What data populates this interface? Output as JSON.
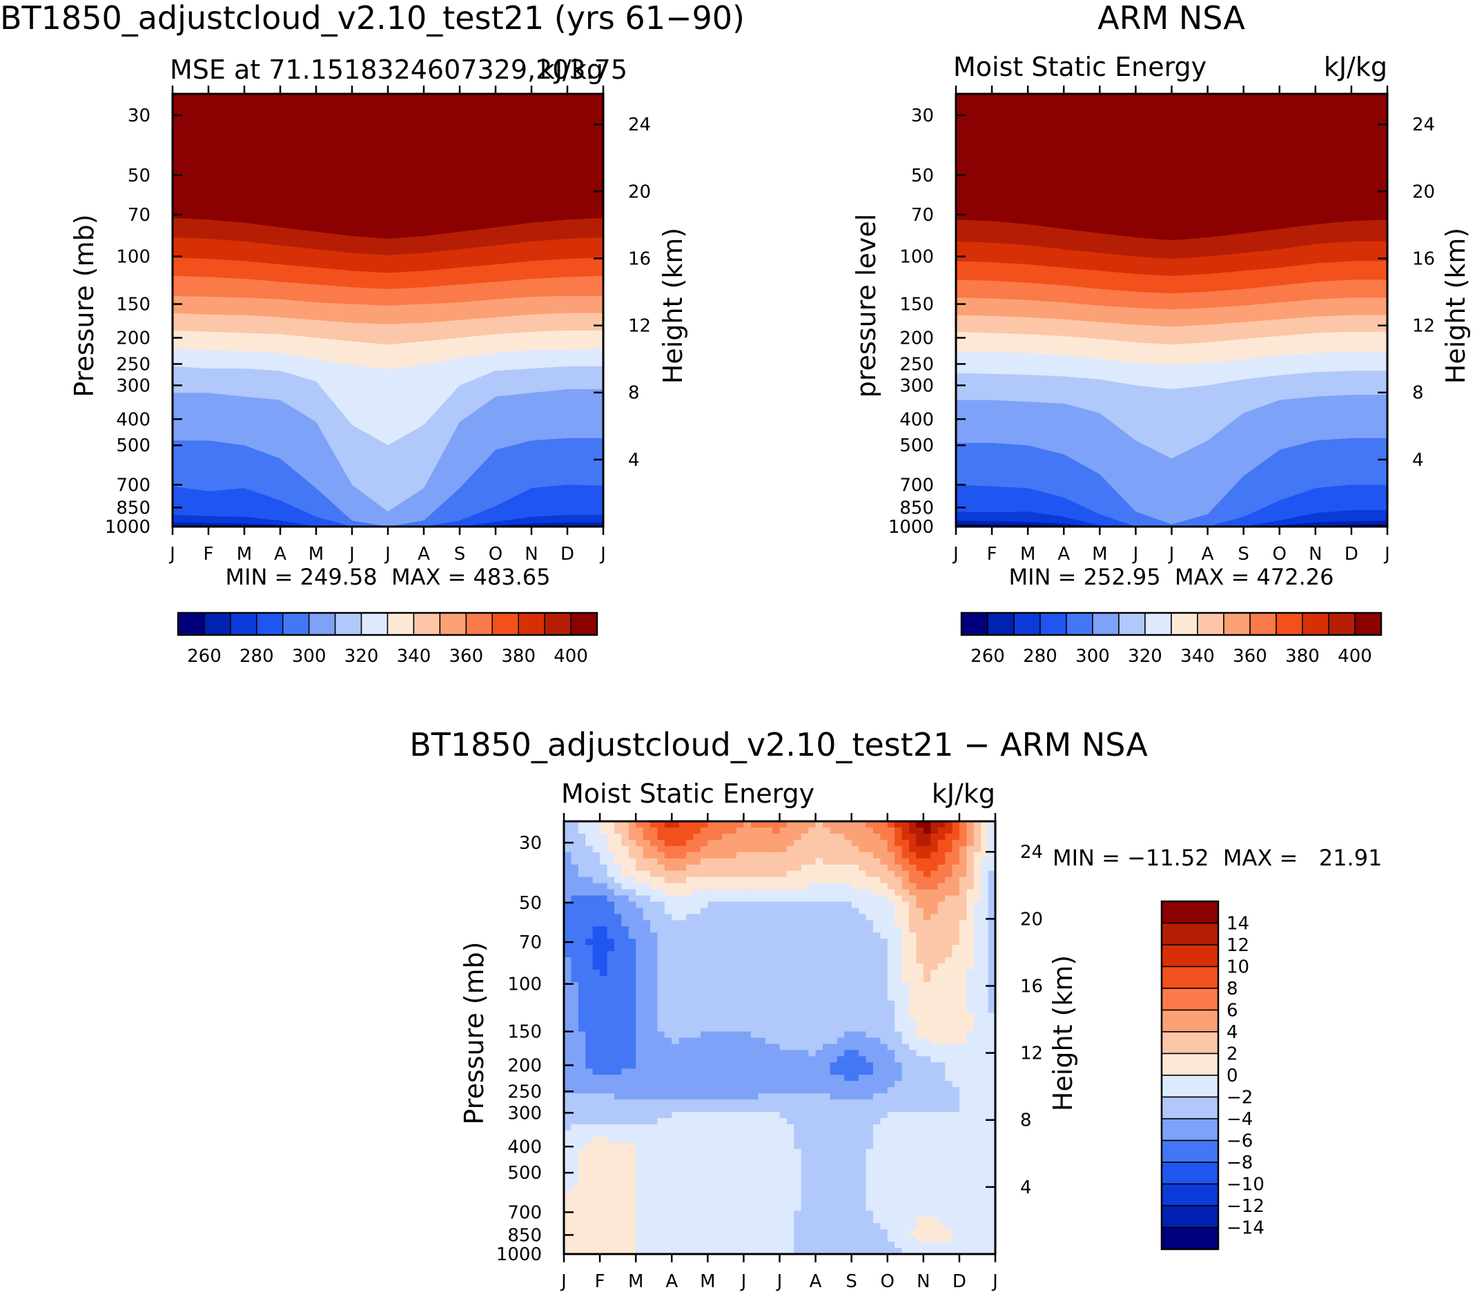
{
  "panels": [
    {
      "id": "model",
      "title": "BT1850_adjustcloud_v2.10_test21 (yrs 61−90)",
      "left_label": "MSE at 71.1518324607329,203.75",
      "right_label": "kJ/kg",
      "ylabel": "Pressure  (mb)",
      "ylabel_right": "Height  (km)",
      "stats": "MIN = 249.58  MAX = 483.65"
    },
    {
      "id": "obs",
      "title": "ARM NSA",
      "left_label": "Moist Static Energy",
      "right_label": "kJ/kg",
      "ylabel": "pressure  level",
      "ylabel_right": "Height  (km)",
      "stats": "MIN = 252.95  MAX = 472.26"
    },
    {
      "id": "diff",
      "title": "BT1850_adjustcloud_v2.10_test21 − ARM NSA",
      "left_label": "Moist Static Energy",
      "right_label": "kJ/kg",
      "ylabel": "Pressure  (mb)",
      "ylabel_right": "Height  (km)",
      "stats": "MIN = −11.52  MAX =   21.91"
    }
  ],
  "colorbar_top": {
    "labels": [
      "260",
      "280",
      "300",
      "320",
      "340",
      "360",
      "380",
      "400"
    ],
    "colors": [
      "#00007f",
      "#0022b0",
      "#0a3ad8",
      "#1f55f0",
      "#4477f5",
      "#7ea2f7",
      "#b0c8fa",
      "#dde9fc",
      "#fde8d6",
      "#fcc7a8",
      "#fca176",
      "#fb7a49",
      "#f2511c",
      "#d83006",
      "#b51e04",
      "#8b0000"
    ]
  },
  "colorbar_diff": {
    "labels": [
      "14",
      "12",
      "10",
      "8",
      "6",
      "4",
      "2",
      "0",
      "−2",
      "−4",
      "−6",
      "−8",
      "−10",
      "−12",
      "−14"
    ],
    "colors": [
      "#8b0000",
      "#b51e04",
      "#d83006",
      "#f2511c",
      "#fb7a49",
      "#fca176",
      "#fcc7a8",
      "#fde8d6",
      "#dde9fc",
      "#b0c8fa",
      "#7ea2f7",
      "#4477f5",
      "#1f55f0",
      "#0a3ad8",
      "#0022b0",
      "#00007f"
    ]
  },
  "chart_data": [
    {
      "type": "heatmap",
      "panel": "model",
      "x": [
        "J",
        "F",
        "M",
        "A",
        "M",
        "J",
        "J",
        "A",
        "S",
        "O",
        "N",
        "D",
        "J"
      ],
      "y_pressure_mb": [
        30,
        50,
        70,
        100,
        150,
        200,
        250,
        300,
        400,
        500,
        700,
        850,
        1000
      ],
      "y_height_km": [
        4,
        8,
        12,
        16,
        20,
        24
      ],
      "value_range": [
        249.58,
        483.65
      ],
      "units": "kJ/kg",
      "contour_levels": [
        260,
        270,
        280,
        290,
        300,
        310,
        320,
        330,
        340,
        350,
        360,
        370,
        380,
        390,
        400
      ],
      "level_pressure_by_month": [
        {
          "value": 260,
          "p": [
            990,
            995,
            995,
            1000,
            1010,
            1020,
            1020,
            1020,
            1010,
            1005,
            1000,
            995,
            990
          ]
        },
        {
          "value": 270,
          "p": [
            965,
            970,
            975,
            985,
            1010,
            1020,
            1020,
            1020,
            1010,
            990,
            975,
            965,
            965
          ]
        },
        {
          "value": 280,
          "p": [
            905,
            915,
            920,
            950,
            1000,
            1020,
            1020,
            1020,
            1010,
            960,
            920,
            905,
            905
          ]
        },
        {
          "value": 290,
          "p": [
            710,
            740,
            720,
            800,
            920,
            1020,
            1020,
            1020,
            950,
            840,
            720,
            700,
            705
          ]
        },
        {
          "value": 300,
          "p": [
            480,
            480,
            500,
            560,
            720,
            950,
            1000,
            950,
            720,
            520,
            480,
            470,
            470
          ]
        },
        {
          "value": 310,
          "p": [
            320,
            320,
            330,
            340,
            410,
            700,
            880,
            720,
            410,
            330,
            320,
            310,
            310
          ]
        },
        {
          "value": 320,
          "p": [
            255,
            260,
            260,
            265,
            290,
            420,
            500,
            420,
            300,
            265,
            260,
            255,
            255
          ]
        },
        {
          "value": 330,
          "p": [
            220,
            222,
            224,
            228,
            240,
            252,
            262,
            252,
            238,
            228,
            222,
            222,
            220
          ]
        },
        {
          "value": 340,
          "p": [
            188,
            190,
            192,
            194,
            200,
            206,
            212,
            206,
            200,
            194,
            190,
            188,
            188
          ]
        },
        {
          "value": 350,
          "p": [
            162,
            164,
            165,
            168,
            172,
            176,
            178,
            176,
            172,
            168,
            164,
            162,
            162
          ]
        },
        {
          "value": 360,
          "p": [
            140,
            141,
            142,
            144,
            148,
            150,
            152,
            150,
            148,
            144,
            141,
            140,
            140
          ]
        },
        {
          "value": 370,
          "p": [
            118,
            119,
            121,
            124,
            127,
            130,
            132,
            130,
            127,
            124,
            121,
            119,
            118
          ]
        },
        {
          "value": 380,
          "p": [
            101,
            102,
            104,
            107,
            110,
            113,
            115,
            113,
            110,
            107,
            104,
            102,
            101
          ]
        },
        {
          "value": 390,
          "p": [
            85,
            86,
            88,
            91,
            94,
            97,
            99,
            97,
            94,
            91,
            88,
            86,
            85
          ]
        },
        {
          "value": 400,
          "p": [
            72,
            73,
            75,
            78,
            81,
            84,
            86,
            84,
            81,
            78,
            75,
            73,
            72
          ]
        }
      ]
    },
    {
      "type": "heatmap",
      "panel": "obs",
      "x": [
        "J",
        "F",
        "M",
        "A",
        "M",
        "J",
        "J",
        "A",
        "S",
        "O",
        "N",
        "D",
        "J"
      ],
      "y_pressure_mb": [
        30,
        50,
        70,
        100,
        150,
        200,
        250,
        300,
        400,
        500,
        700,
        850,
        1000
      ],
      "y_height_km": [
        4,
        8,
        12,
        16,
        20,
        24
      ],
      "value_range": [
        252.95,
        472.26
      ],
      "units": "kJ/kg",
      "contour_levels": [
        260,
        270,
        280,
        290,
        300,
        310,
        320,
        330,
        340,
        350,
        360,
        370,
        380,
        390,
        400
      ],
      "level_pressure_by_month": [
        {
          "value": 260,
          "p": [
            980,
            985,
            985,
            995,
            1005,
            1020,
            1020,
            1020,
            1010,
            1005,
            995,
            985,
            980
          ]
        },
        {
          "value": 270,
          "p": [
            950,
            955,
            960,
            975,
            1000,
            1020,
            1020,
            1020,
            1010,
            990,
            965,
            955,
            950
          ]
        },
        {
          "value": 280,
          "p": [
            880,
            885,
            880,
            920,
            990,
            1020,
            1020,
            1020,
            1000,
            950,
            890,
            870,
            870
          ]
        },
        {
          "value": 290,
          "p": [
            700,
            710,
            720,
            780,
            900,
            1010,
            1020,
            1000,
            920,
            800,
            720,
            700,
            700
          ]
        },
        {
          "value": 300,
          "p": [
            490,
            490,
            500,
            540,
            640,
            880,
            980,
            900,
            650,
            520,
            480,
            470,
            470
          ]
        },
        {
          "value": 310,
          "p": [
            340,
            340,
            345,
            350,
            380,
            480,
            560,
            480,
            380,
            340,
            330,
            325,
            325
          ]
        },
        {
          "value": 320,
          "p": [
            270,
            272,
            274,
            278,
            285,
            300,
            310,
            300,
            285,
            275,
            268,
            265,
            265
          ]
        },
        {
          "value": 330,
          "p": [
            225,
            226,
            228,
            232,
            240,
            248,
            252,
            248,
            240,
            232,
            228,
            225,
            225
          ]
        },
        {
          "value": 340,
          "p": [
            190,
            192,
            194,
            197,
            202,
            208,
            212,
            208,
            202,
            197,
            192,
            190,
            190
          ]
        },
        {
          "value": 350,
          "p": [
            165,
            166,
            168,
            171,
            175,
            179,
            182,
            179,
            175,
            171,
            167,
            165,
            165
          ]
        },
        {
          "value": 360,
          "p": [
            142,
            143,
            145,
            148,
            152,
            155,
            157,
            155,
            152,
            148,
            144,
            142,
            142
          ]
        },
        {
          "value": 370,
          "p": [
            122,
            123,
            125,
            128,
            132,
            135,
            137,
            135,
            132,
            128,
            124,
            122,
            122
          ]
        },
        {
          "value": 380,
          "p": [
            104,
            105,
            107,
            110,
            113,
            116,
            118,
            116,
            113,
            110,
            106,
            104,
            104
          ]
        },
        {
          "value": 390,
          "p": [
            88,
            89,
            91,
            94,
            97,
            100,
            102,
            100,
            97,
            94,
            90,
            88,
            88
          ]
        },
        {
          "value": 400,
          "p": [
            73,
            74,
            76,
            79,
            82,
            85,
            87,
            85,
            82,
            79,
            76,
            74,
            73
          ]
        }
      ]
    },
    {
      "type": "heatmap",
      "panel": "diff",
      "x": [
        "J",
        "F",
        "M",
        "A",
        "M",
        "J",
        "J",
        "A",
        "S",
        "O",
        "N",
        "D",
        "J"
      ],
      "y_pressure_mb": [
        30,
        50,
        70,
        100,
        150,
        200,
        250,
        300,
        400,
        500,
        700,
        850,
        1000
      ],
      "y_height_km": [
        4,
        8,
        12,
        16,
        20,
        24
      ],
      "value_range": [
        -11.52,
        21.91
      ],
      "units": "kJ/kg",
      "contour_levels": [
        -14,
        -12,
        -10,
        -8,
        -6,
        -4,
        -2,
        0,
        2,
        4,
        6,
        8,
        10,
        12,
        14
      ],
      "grid_pressure_mb": [
        25,
        30,
        40,
        50,
        70,
        100,
        150,
        200,
        250,
        300,
        400,
        500,
        700,
        850,
        1000
      ],
      "grid_values": [
        [
          -3,
          0,
          6,
          11,
          8,
          6,
          7,
          4,
          5,
          8,
          16,
          9,
          -1
        ],
        [
          -4,
          -1,
          4,
          9,
          6,
          5,
          5,
          3,
          4,
          6,
          13,
          7,
          -2
        ],
        [
          -5,
          -3,
          1,
          3,
          2,
          2,
          2,
          1,
          1,
          3,
          8,
          5,
          -3
        ],
        [
          -6,
          -7,
          -4,
          -1,
          -2,
          -2,
          -2,
          -2,
          -2,
          -1,
          5,
          3,
          -3
        ],
        [
          -6,
          -9,
          -6,
          -3,
          -3,
          -3,
          -3,
          -3,
          -3,
          -2,
          3,
          2,
          -3
        ],
        [
          -5,
          -8,
          -6,
          -3,
          -3,
          -3,
          -3,
          -3,
          -3,
          -2,
          2,
          1,
          -3
        ],
        [
          -5,
          -7,
          -6,
          -3,
          -4,
          -4,
          -3,
          -2,
          -4,
          -3,
          1,
          1,
          -2
        ],
        [
          -5,
          -7,
          -6,
          -6,
          -6,
          -6,
          -5,
          -5,
          -8,
          -5,
          -3,
          -1,
          -2
        ],
        [
          -4,
          -4,
          -5,
          -5,
          -5,
          -5,
          -4,
          -4,
          -5,
          -4,
          -3,
          -2,
          -2
        ],
        [
          -3,
          -3,
          -3,
          -2,
          -2,
          -2,
          -2,
          -3,
          -3,
          -2,
          -2,
          -2,
          -2
        ],
        [
          -1,
          1,
          0,
          -1,
          -1,
          -1,
          -1,
          -3,
          -3,
          -1,
          -1,
          -1,
          -1
        ],
        [
          -1,
          1,
          0,
          -1,
          -1,
          -1,
          -1,
          -3,
          -3,
          -1,
          -1,
          -1,
          -1
        ],
        [
          1,
          1,
          0,
          -1,
          -1,
          -1,
          -1,
          -3,
          -3,
          -1,
          0,
          -1,
          -1
        ],
        [
          1,
          2,
          0,
          -1,
          0,
          -1,
          -1,
          -4,
          -4,
          -2,
          1,
          0,
          0
        ],
        [
          0,
          1,
          0,
          -1,
          0,
          -1,
          -1,
          -4,
          -4,
          -3,
          -1,
          -1,
          -1
        ]
      ]
    }
  ]
}
